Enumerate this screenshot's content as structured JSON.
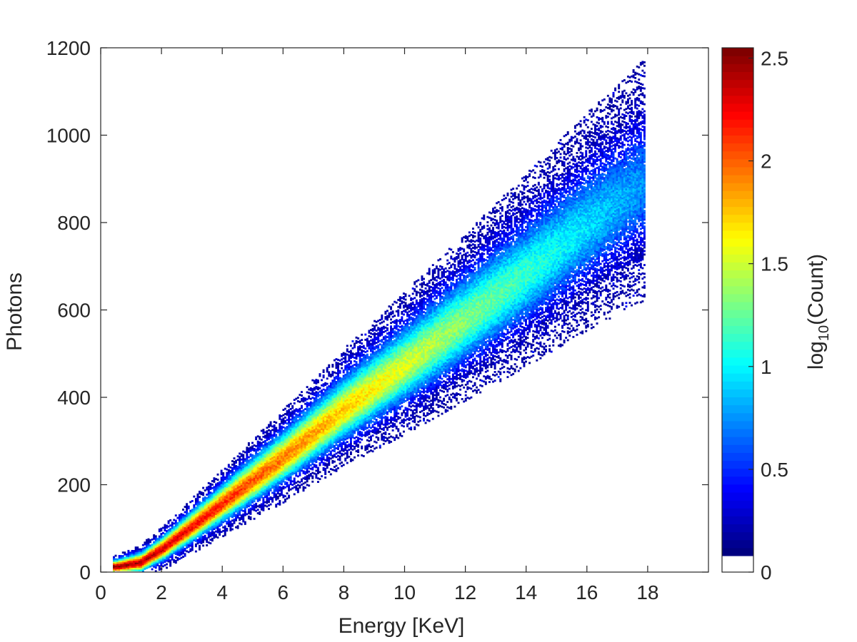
{
  "chart_data": {
    "type": "heatmap",
    "xlabel": "Energy [KeV]",
    "ylabel": "Photons",
    "xlim": [
      0,
      20
    ],
    "ylim": [
      0,
      1200
    ],
    "x_ticks": [
      {
        "value": 0,
        "label": "0"
      },
      {
        "value": 2,
        "label": "2"
      },
      {
        "value": 4,
        "label": "4"
      },
      {
        "value": 6,
        "label": "6"
      },
      {
        "value": 8,
        "label": "8"
      },
      {
        "value": 10,
        "label": "10"
      },
      {
        "value": 12,
        "label": "12"
      },
      {
        "value": 14,
        "label": "14"
      },
      {
        "value": 16,
        "label": "16"
      },
      {
        "value": 18,
        "label": "18"
      }
    ],
    "y_ticks": [
      {
        "value": 0,
        "label": "0"
      },
      {
        "value": 200,
        "label": "200"
      },
      {
        "value": 400,
        "label": "400"
      },
      {
        "value": 600,
        "label": "600"
      },
      {
        "value": 800,
        "label": "800"
      },
      {
        "value": 1000,
        "label": "1000"
      },
      {
        "value": 1200,
        "label": "1200"
      }
    ],
    "colorbar": {
      "label_base": "log",
      "label_subscript": "10",
      "label_rest": "(Count)",
      "range": [
        0,
        2.55
      ],
      "ticks": [
        {
          "value": 0,
          "label": "0"
        },
        {
          "value": 0.5,
          "label": "0.5"
        },
        {
          "value": 1,
          "label": "1"
        },
        {
          "value": 1.5,
          "label": "1.5"
        },
        {
          "value": 2,
          "label": "2"
        },
        {
          "value": 2.5,
          "label": "2.5"
        }
      ],
      "colormap": "jet"
    },
    "ridge": {
      "description_points": [
        {
          "energy": 0.5,
          "photons": 10
        },
        {
          "energy": 1.3,
          "photons": 20
        },
        {
          "energy": 2,
          "photons": 50
        },
        {
          "energy": 4,
          "photons": 155
        },
        {
          "energy": 6,
          "photons": 260
        },
        {
          "energy": 8,
          "photons": 370
        },
        {
          "energy": 10,
          "photons": 470
        },
        {
          "energy": 12,
          "photons": 575
        },
        {
          "energy": 14,
          "photons": 680
        },
        {
          "energy": 16,
          "photons": 790
        },
        {
          "energy": 17.8,
          "photons": 880
        }
      ],
      "peak_log10_count": 2.55,
      "energy_range": [
        0.4,
        17.9
      ]
    }
  }
}
